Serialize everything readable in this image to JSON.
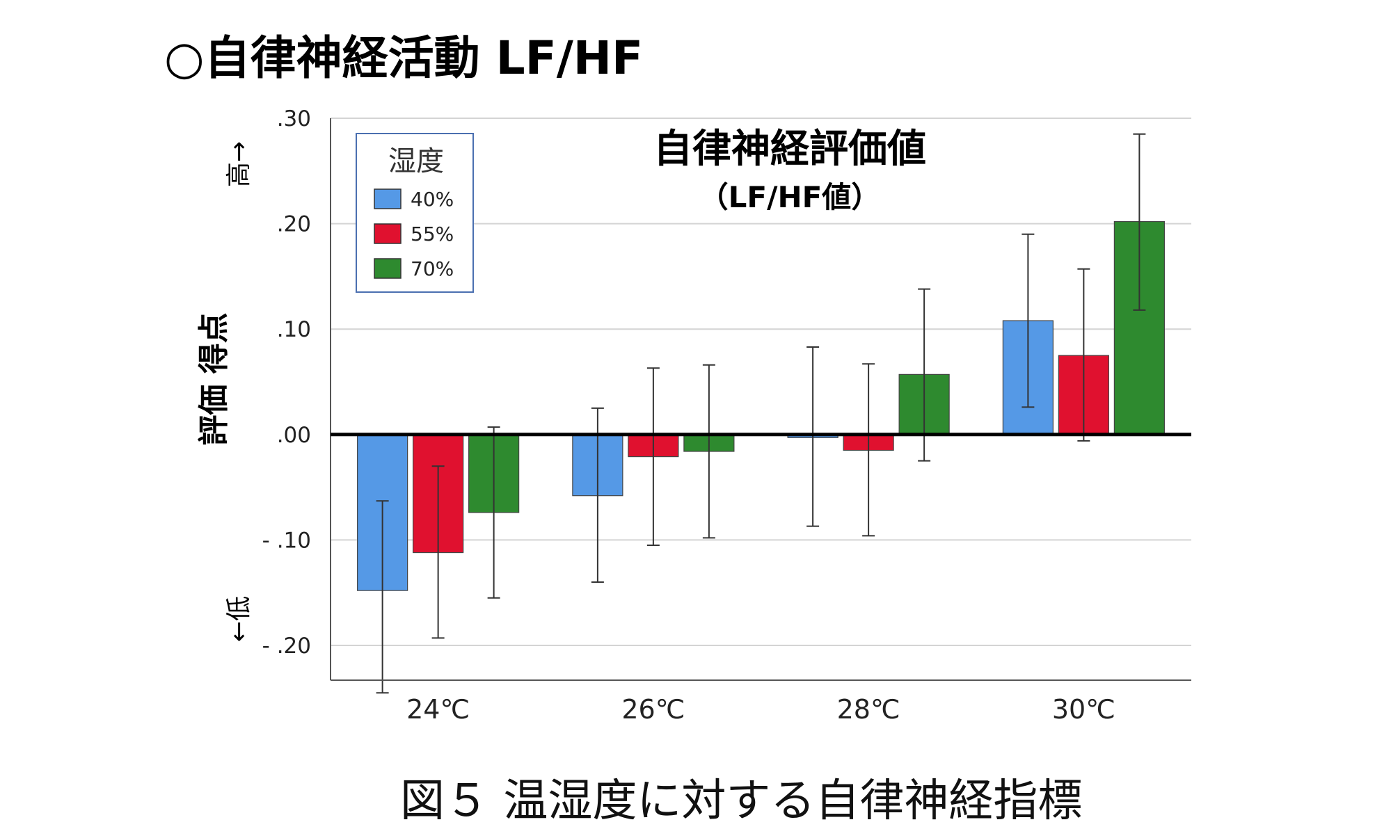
{
  "page_title": "○自律神経活動 LF/HF",
  "caption": "図５  温湿度に対する自律神経指標",
  "chart_data": {
    "type": "bar",
    "title": "自律神経評価値",
    "subtitle": "（LF/HF値）",
    "ylabel": "評価 得点",
    "y_high_label": "高→",
    "y_low_label": "←低",
    "ylim": [
      -0.233,
      0.3
    ],
    "yticks": [
      0.3,
      0.2,
      0.1,
      0.0,
      -0.1,
      -0.2
    ],
    "ytick_labels": [
      ".30",
      ".20",
      ".10",
      ".00",
      "- .10",
      "- .20"
    ],
    "categories": [
      "24℃",
      "26℃",
      "28℃",
      "30℃"
    ],
    "legend_title": "湿度",
    "series": [
      {
        "name": "40%",
        "color": "#5599e6",
        "values": [
          -0.148,
          -0.058,
          -0.003,
          0.108
        ],
        "err_low": [
          -0.245,
          -0.14,
          -0.087,
          0.026
        ],
        "err_high": [
          -0.063,
          0.025,
          0.083,
          0.19
        ]
      },
      {
        "name": "55%",
        "color": "#e0112f",
        "values": [
          -0.112,
          -0.021,
          -0.015,
          0.075
        ],
        "err_low": [
          -0.193,
          -0.105,
          -0.096,
          -0.006
        ],
        "err_high": [
          -0.03,
          0.063,
          0.067,
          0.157
        ]
      },
      {
        "name": "70%",
        "color": "#2e8a2f",
        "values": [
          -0.074,
          -0.016,
          0.057,
          0.202
        ],
        "err_low": [
          -0.155,
          -0.098,
          -0.025,
          0.118
        ],
        "err_high": [
          0.007,
          0.066,
          0.138,
          0.285
        ]
      }
    ]
  }
}
